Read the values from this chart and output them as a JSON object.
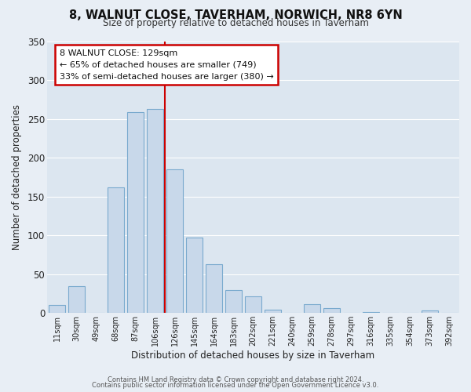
{
  "title": "8, WALNUT CLOSE, TAVERHAM, NORWICH, NR8 6YN",
  "subtitle": "Size of property relative to detached houses in Taverham",
  "xlabel": "Distribution of detached houses by size in Taverham",
  "ylabel": "Number of detached properties",
  "bar_color": "#c8d8ea",
  "bar_edge_color": "#7aaace",
  "fig_bg_color": "#e8eef5",
  "ax_bg_color": "#dce6f0",
  "grid_color": "#ffffff",
  "categories": [
    "11sqm",
    "30sqm",
    "49sqm",
    "68sqm",
    "87sqm",
    "106sqm",
    "126sqm",
    "145sqm",
    "164sqm",
    "183sqm",
    "202sqm",
    "221sqm",
    "240sqm",
    "259sqm",
    "278sqm",
    "297sqm",
    "316sqm",
    "335sqm",
    "354sqm",
    "373sqm",
    "392sqm"
  ],
  "values": [
    10,
    35,
    0,
    162,
    259,
    263,
    185,
    97,
    63,
    30,
    21,
    4,
    0,
    11,
    6,
    0,
    1,
    0,
    0,
    3,
    0
  ],
  "ylim": [
    0,
    350
  ],
  "yticks": [
    0,
    50,
    100,
    150,
    200,
    250,
    300,
    350
  ],
  "property_line_color": "#cc0000",
  "property_line_bar_index": 6,
  "annotation_title": "8 WALNUT CLOSE: 129sqm",
  "annotation_line1": "← 65% of detached houses are smaller (749)",
  "annotation_line2": "33% of semi-detached houses are larger (380) →",
  "annotation_box_color": "#cc0000",
  "footer1": "Contains HM Land Registry data © Crown copyright and database right 2024.",
  "footer2": "Contains public sector information licensed under the Open Government Licence v3.0."
}
